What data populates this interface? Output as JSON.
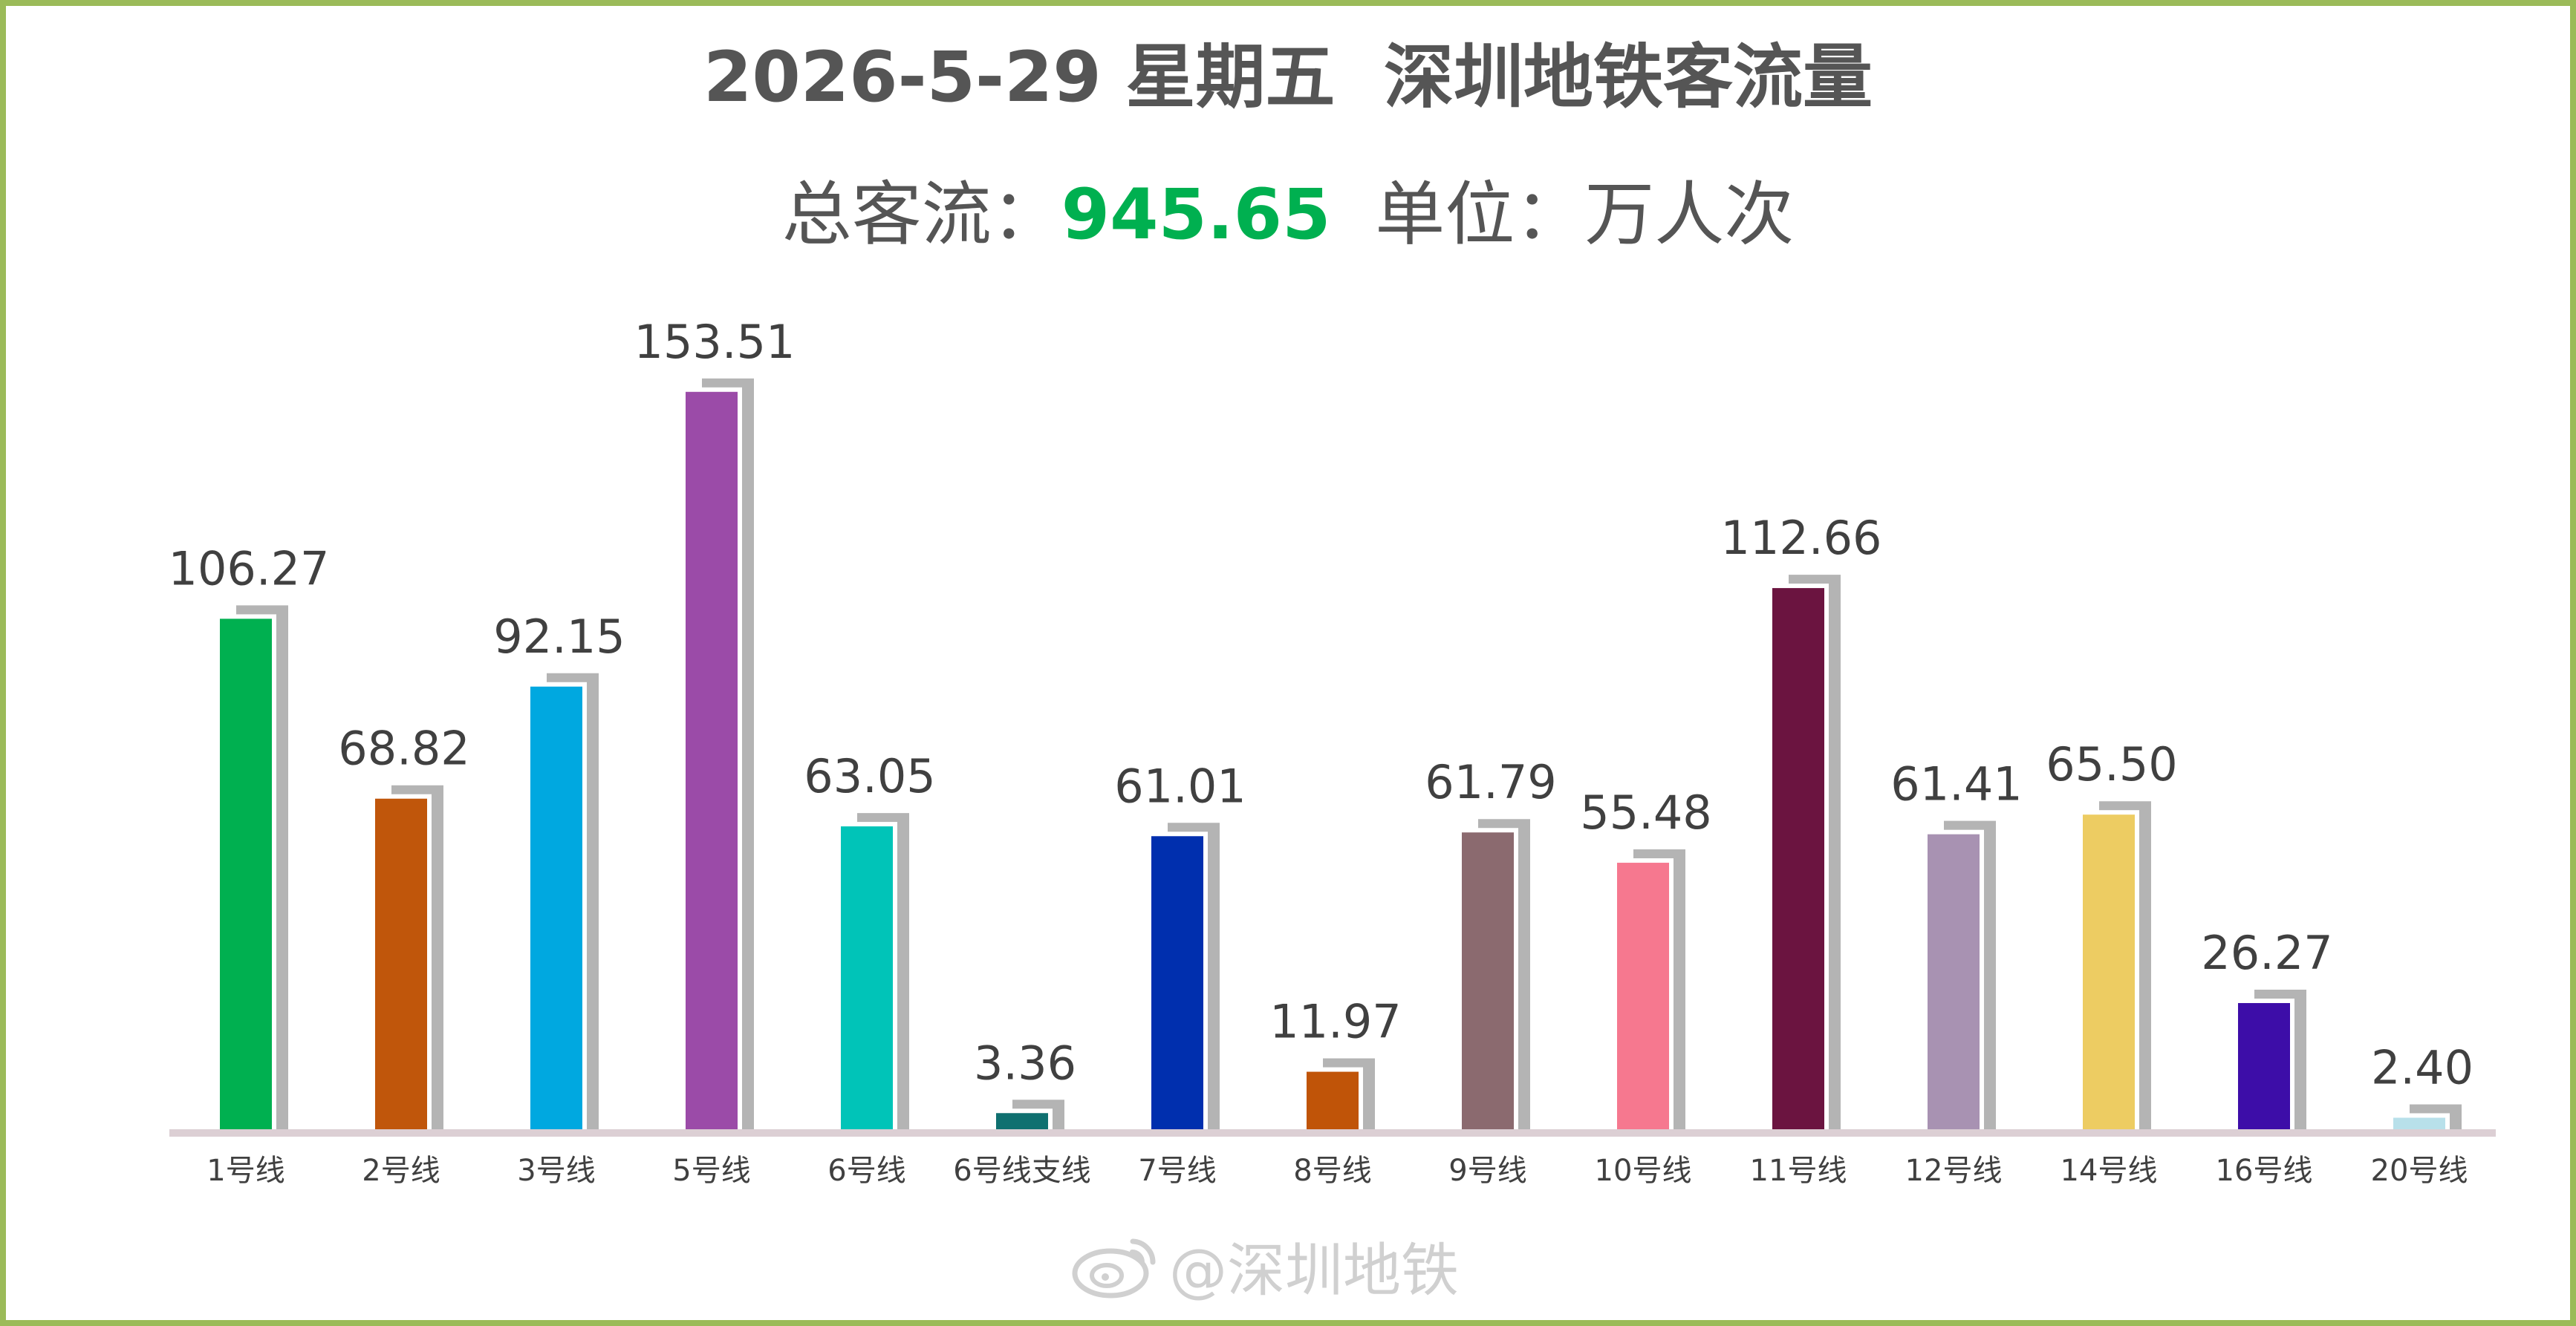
{
  "header": {
    "title": "2026-5-29 星期五  深圳地铁客流量",
    "total_label": "总客流：",
    "total_value": "945.65",
    "unit_text": "单位：万人次"
  },
  "watermark": {
    "text": "@深圳地铁",
    "icon": "weibo-icon"
  },
  "chart_data": {
    "type": "bar",
    "title": "2026-5-29 星期五  深圳地铁客流量",
    "xlabel": "",
    "ylabel": "",
    "ylim": [
      0,
      160
    ],
    "grid": false,
    "legend": "none",
    "categories": [
      "1号线",
      "2号线",
      "3号线",
      "5号线",
      "6号线",
      "6号线支线",
      "7号线",
      "8号线",
      "9号线",
      "10号线",
      "11号线",
      "12号线",
      "14号线",
      "16号线",
      "20号线"
    ],
    "values": [
      106.27,
      68.82,
      92.15,
      153.51,
      63.05,
      3.36,
      61.01,
      11.97,
      61.79,
      55.48,
      112.66,
      61.41,
      65.5,
      26.27,
      2.4
    ],
    "labels": [
      "106.27",
      "68.82",
      "92.15",
      "153.51",
      "63.05",
      "3.36",
      "61.01",
      "11.97",
      "61.79",
      "55.48",
      "112.66",
      "61.41",
      "65.50",
      "26.27",
      "2.40"
    ],
    "colors": [
      "#00b050",
      "#c0560b",
      "#00a8e0",
      "#9b4ba8",
      "#00c4b8",
      "#0f7070",
      "#002fae",
      "#c05408",
      "#8b6a6f",
      "#f6788f",
      "#6b1440",
      "#a892b2",
      "#edcc62",
      "#3d0da8",
      "#b8e0ea"
    ],
    "shadow_color": "#b4b4b4",
    "baseline_color": "#dccfd4"
  }
}
